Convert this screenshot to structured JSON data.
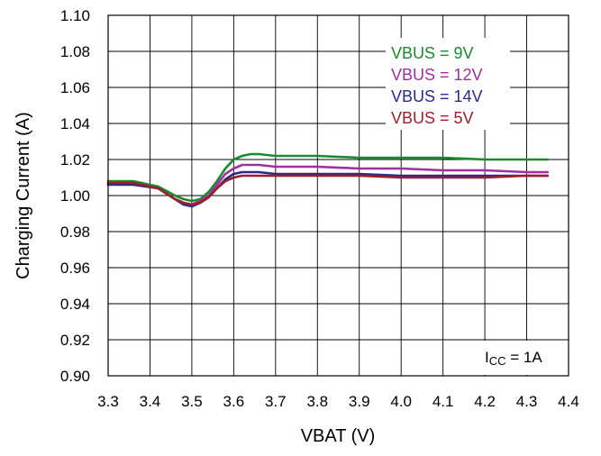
{
  "chart_data": {
    "type": "line",
    "title": "",
    "xlabel": "VBAT (V)",
    "ylabel": "Charging Current (A)",
    "xlim": [
      3.3,
      4.4
    ],
    "ylim": [
      0.9,
      1.1
    ],
    "x_ticks": [
      "3.3",
      "3.4",
      "3.5",
      "3.6",
      "3.7",
      "3.8",
      "3.9",
      "4.0",
      "4.1",
      "4.2",
      "4.3",
      "4.4"
    ],
    "y_ticks": [
      "0.90",
      "0.92",
      "0.94",
      "0.96",
      "0.98",
      "1.00",
      "1.02",
      "1.04",
      "1.06",
      "1.08",
      "1.10"
    ],
    "grid": true,
    "legend_position": "top-right",
    "annotation": {
      "main": "I",
      "sub": "CC",
      "rest": " = 1A"
    },
    "series": [
      {
        "name": "VBUS = 9V",
        "color": "#1a8a2e",
        "x": [
          3.3,
          3.36,
          3.42,
          3.46,
          3.48,
          3.5,
          3.52,
          3.54,
          3.56,
          3.58,
          3.6,
          3.62,
          3.64,
          3.66,
          3.7,
          3.8,
          3.9,
          4.0,
          4.1,
          4.2,
          4.3,
          4.35
        ],
        "y": [
          1.008,
          1.008,
          1.005,
          1.0,
          0.998,
          0.997,
          0.998,
          1.002,
          1.008,
          1.015,
          1.02,
          1.022,
          1.023,
          1.023,
          1.022,
          1.022,
          1.021,
          1.021,
          1.021,
          1.02,
          1.02,
          1.02
        ]
      },
      {
        "name": "VBUS = 12V",
        "color": "#a0309c",
        "x": [
          3.3,
          3.36,
          3.42,
          3.46,
          3.48,
          3.5,
          3.52,
          3.54,
          3.56,
          3.58,
          3.6,
          3.62,
          3.64,
          3.66,
          3.7,
          3.8,
          3.9,
          4.0,
          4.1,
          4.2,
          4.3,
          4.35
        ],
        "y": [
          1.007,
          1.007,
          1.004,
          0.998,
          0.996,
          0.995,
          0.997,
          1.0,
          1.006,
          1.012,
          1.015,
          1.017,
          1.017,
          1.017,
          1.016,
          1.016,
          1.015,
          1.015,
          1.014,
          1.014,
          1.013,
          1.013
        ]
      },
      {
        "name": "VBUS = 14V",
        "color": "#2a2a8c",
        "x": [
          3.3,
          3.36,
          3.42,
          3.46,
          3.48,
          3.5,
          3.52,
          3.54,
          3.56,
          3.58,
          3.6,
          3.62,
          3.64,
          3.66,
          3.7,
          3.8,
          3.9,
          4.0,
          4.1,
          4.2,
          4.3,
          4.35
        ],
        "y": [
          1.006,
          1.006,
          1.004,
          0.998,
          0.995,
          0.994,
          0.996,
          0.999,
          1.004,
          1.009,
          1.012,
          1.013,
          1.013,
          1.013,
          1.012,
          1.012,
          1.012,
          1.011,
          1.011,
          1.011,
          1.011,
          1.011
        ]
      },
      {
        "name": "VBUS = 5V",
        "color": "#9a1f2a",
        "x": [
          3.3,
          3.36,
          3.42,
          3.46,
          3.48,
          3.5,
          3.52,
          3.54,
          3.56,
          3.58,
          3.6,
          3.62,
          3.64,
          3.66,
          3.7,
          3.8,
          3.9,
          4.0,
          4.1,
          4.2,
          4.3,
          4.35
        ],
        "y": [
          1.007,
          1.007,
          1.004,
          0.998,
          0.996,
          0.995,
          0.996,
          0.999,
          1.004,
          1.008,
          1.01,
          1.011,
          1.011,
          1.011,
          1.011,
          1.011,
          1.011,
          1.01,
          1.01,
          1.01,
          1.011,
          1.011
        ]
      }
    ]
  }
}
